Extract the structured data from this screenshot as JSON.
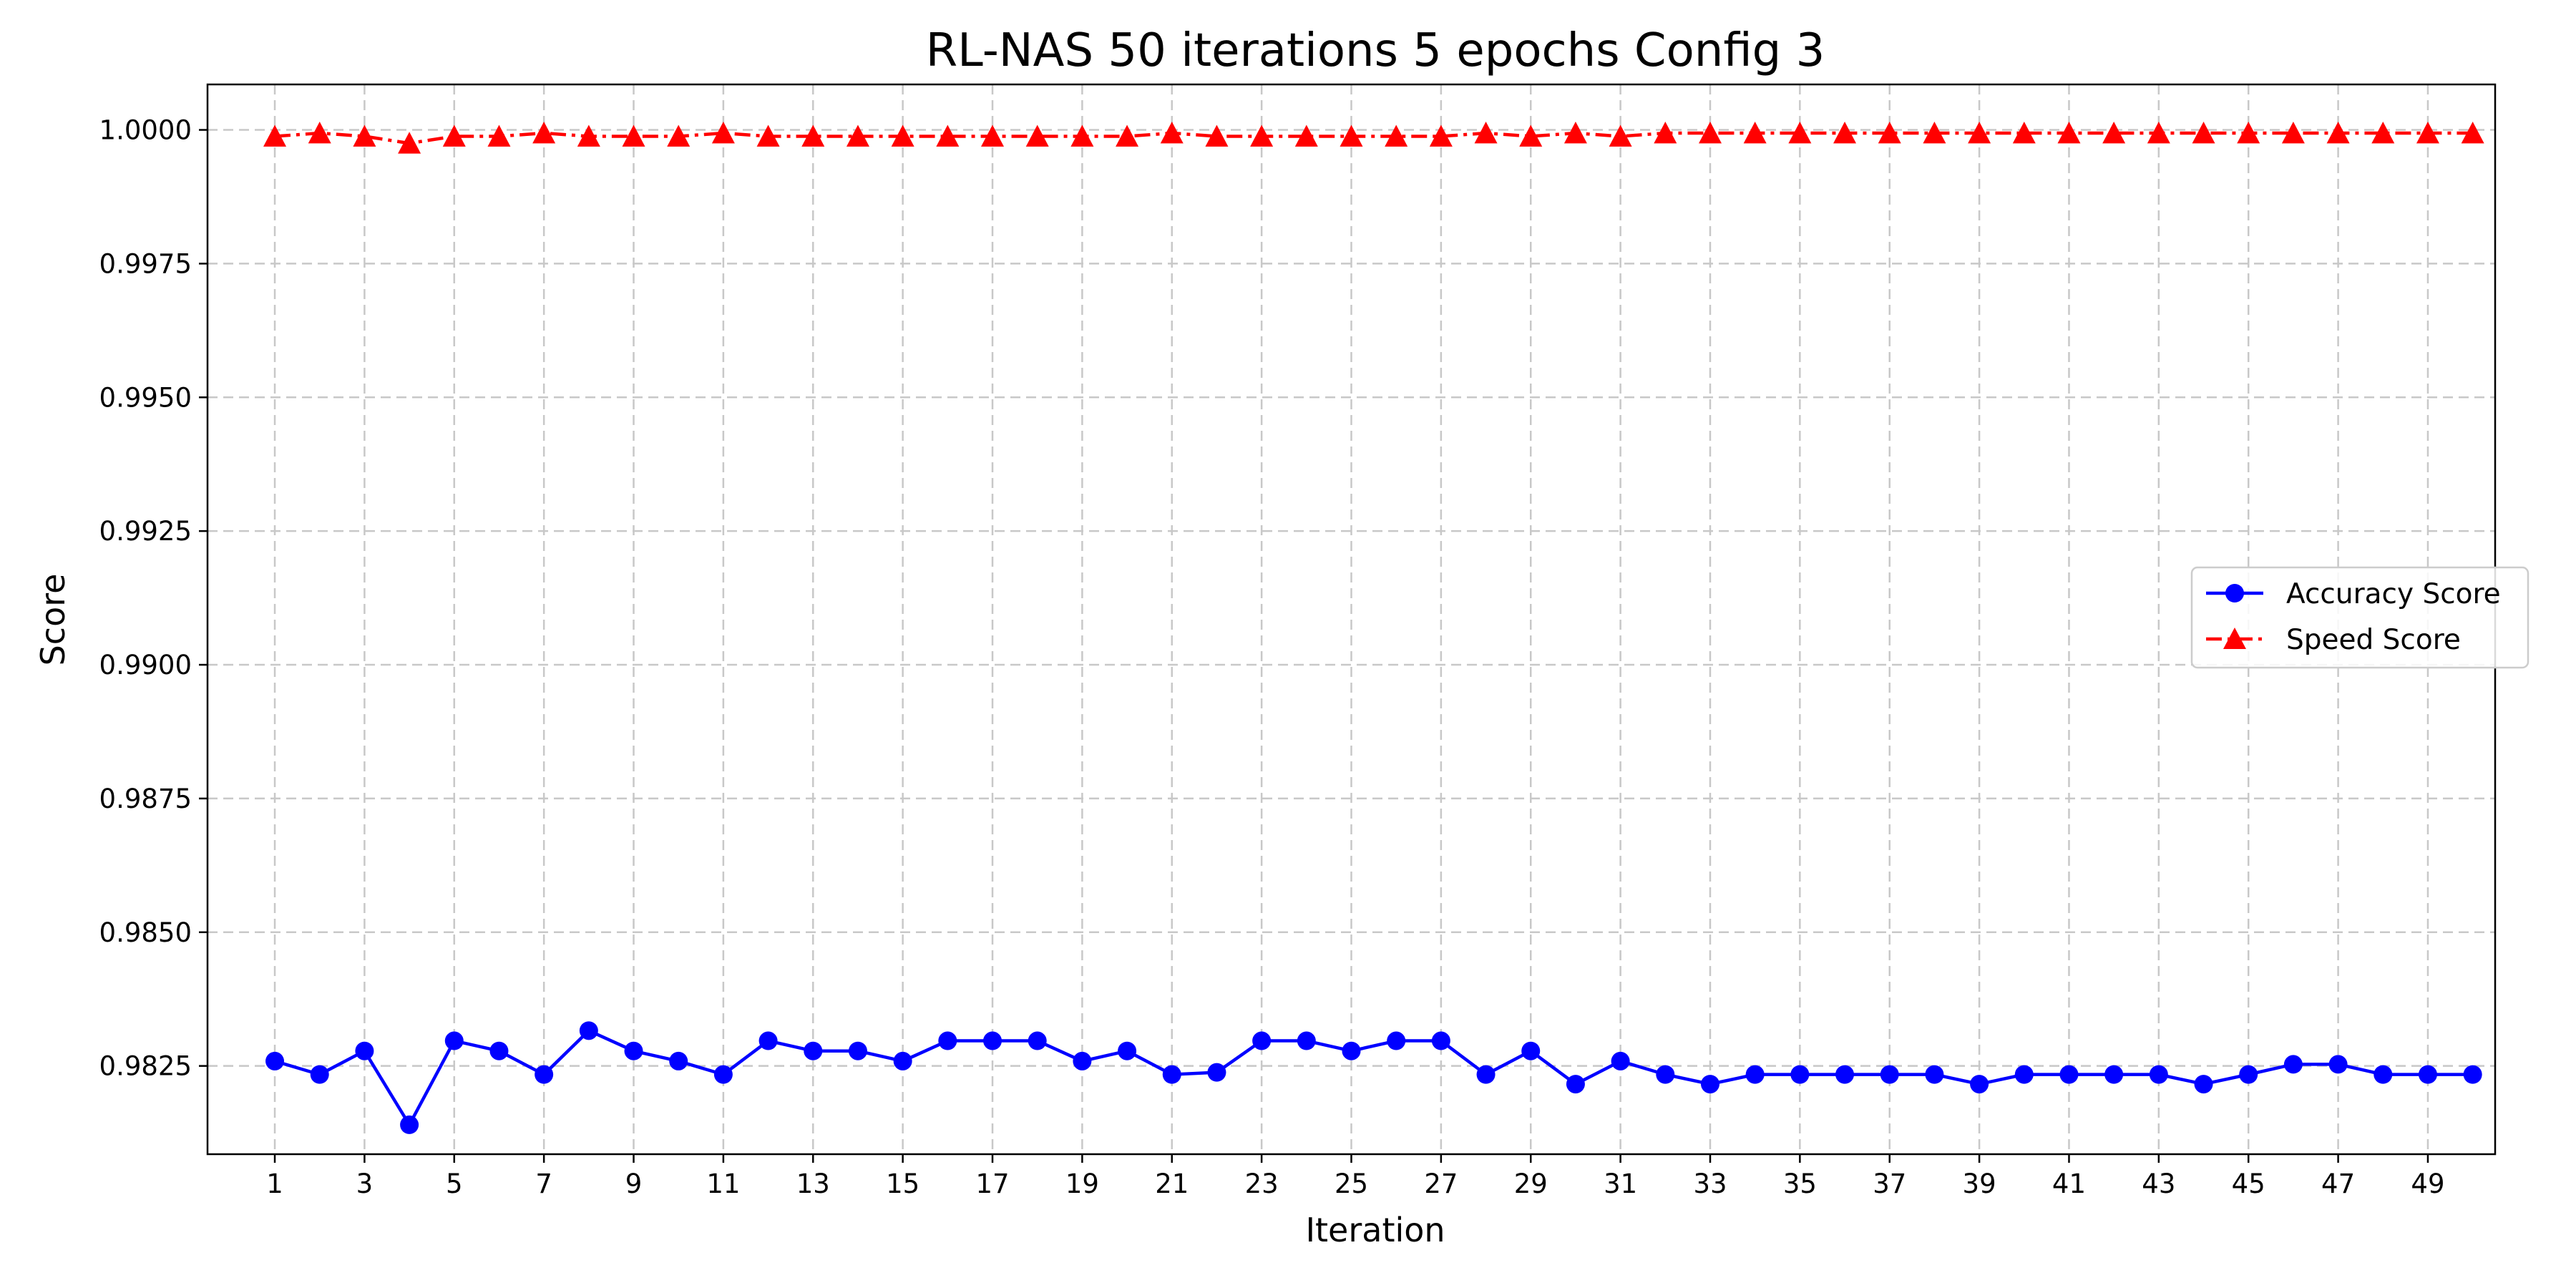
{
  "chart_data": {
    "type": "line",
    "title": "RL-NAS 50 iterations 5 epochs Config 3",
    "xlabel": "Iteration",
    "ylabel": "Score",
    "xlim": [
      -0.5,
      50.5
    ],
    "ylim": [
      0.98085,
      1.00085
    ],
    "x_ticks": [
      1,
      3,
      5,
      7,
      9,
      11,
      13,
      15,
      17,
      19,
      21,
      23,
      25,
      27,
      29,
      31,
      33,
      35,
      37,
      39,
      41,
      43,
      45,
      47,
      49
    ],
    "y_ticks": [
      0.9825,
      0.985,
      0.9875,
      0.99,
      0.9925,
      0.995,
      0.9975,
      1.0
    ],
    "y_tick_labels": [
      "0.9825",
      "0.9850",
      "0.9875",
      "0.9900",
      "0.9925",
      "0.9950",
      "0.9975",
      "1.0000"
    ],
    "grid": true,
    "legend_position": "center-right",
    "x": [
      1,
      2,
      3,
      4,
      5,
      6,
      7,
      8,
      9,
      10,
      11,
      12,
      13,
      14,
      15,
      16,
      17,
      18,
      19,
      20,
      21,
      22,
      23,
      24,
      25,
      26,
      27,
      28,
      29,
      30,
      31,
      32,
      33,
      34,
      35,
      36,
      37,
      38,
      39,
      40,
      41,
      42,
      43,
      44,
      45,
      46,
      47,
      48,
      49,
      50
    ],
    "series": [
      {
        "name": "Accuracy Score",
        "color": "#0000ff",
        "marker": "circle",
        "line_style": "solid",
        "values": [
          0.98259,
          0.98234,
          0.98278,
          0.9814,
          0.98297,
          0.98278,
          0.98234,
          0.98316,
          0.98278,
          0.98259,
          0.98234,
          0.98297,
          0.98278,
          0.98278,
          0.98259,
          0.98297,
          0.98297,
          0.98297,
          0.98259,
          0.98278,
          0.98234,
          0.98238,
          0.98297,
          0.98297,
          0.98278,
          0.98297,
          0.98297,
          0.98234,
          0.98278,
          0.98216,
          0.98259,
          0.98234,
          0.98216,
          0.98234,
          0.98234,
          0.98234,
          0.98234,
          0.98234,
          0.98216,
          0.98234,
          0.98234,
          0.98234,
          0.98234,
          0.98216,
          0.98234,
          0.98253,
          0.98253,
          0.98234,
          0.98234,
          0.98234
        ]
      },
      {
        "name": "Speed Score",
        "color": "#ff0000",
        "marker": "triangle",
        "line_style": "dash-dot",
        "values": [
          0.99988,
          0.99994,
          0.99988,
          0.99975,
          0.99988,
          0.99988,
          0.99994,
          0.99988,
          0.99988,
          0.99988,
          0.99994,
          0.99988,
          0.99988,
          0.99988,
          0.99988,
          0.99988,
          0.99988,
          0.99988,
          0.99988,
          0.99988,
          0.99994,
          0.99988,
          0.99988,
          0.99988,
          0.99988,
          0.99988,
          0.99988,
          0.99994,
          0.99988,
          0.99994,
          0.99988,
          0.99994,
          0.99994,
          0.99994,
          0.99994,
          0.99994,
          0.99994,
          0.99994,
          0.99994,
          0.99994,
          0.99994,
          0.99994,
          0.99994,
          0.99994,
          0.99994,
          0.99994,
          0.99994,
          0.99994,
          0.99994,
          0.99994
        ]
      }
    ]
  }
}
